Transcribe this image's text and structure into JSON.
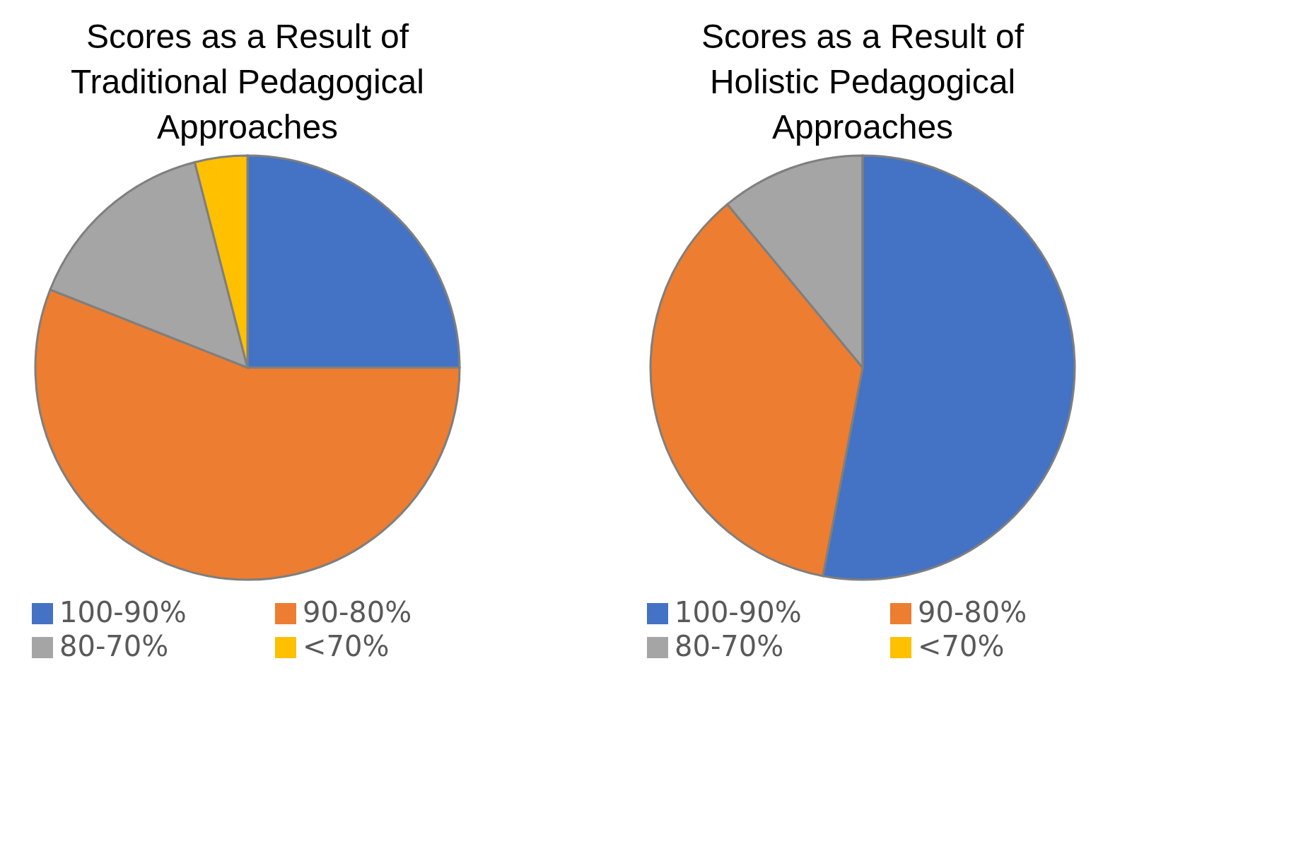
{
  "chart_data": [
    {
      "type": "pie",
      "title": "Scores as a Result of Traditional Pedagogical Approaches",
      "categories": [
        "100-90%",
        "90-80%",
        "80-70%",
        "<70%"
      ],
      "values": [
        25,
        56,
        15,
        4
      ],
      "colors": [
        "#4472c4",
        "#ed7d31",
        "#a5a5a5",
        "#ffc000"
      ],
      "legend": "bottom"
    },
    {
      "type": "pie",
      "title": "Scores as a Result of Holistic Pedagogical Approaches",
      "categories": [
        "100-90%",
        "90-80%",
        "80-70%",
        "<70%"
      ],
      "values": [
        53,
        36,
        11,
        0
      ],
      "colors": [
        "#4472c4",
        "#ed7d31",
        "#a5a5a5",
        "#ffc000"
      ],
      "legend": "bottom"
    }
  ]
}
